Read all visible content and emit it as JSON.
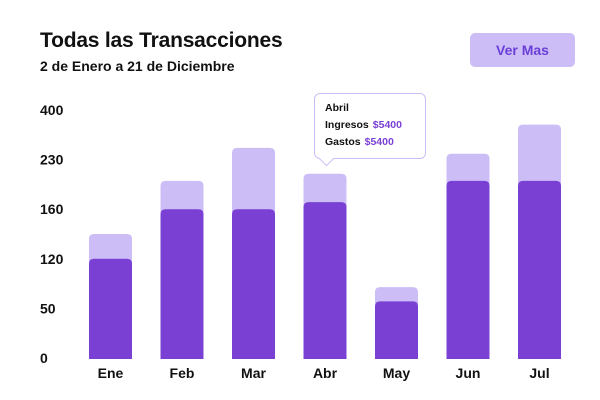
{
  "header": {
    "title": "Todas las Transacciones",
    "subtitle": "2 de Enero a 21 de Diciembre",
    "button_label": "Ver Mas"
  },
  "colors": {
    "bar_top": "#cdbdf7",
    "bar_bottom": "#7a40d4",
    "accent_text": "#6a3fd6"
  },
  "tooltip": {
    "month": "Abril",
    "ingresos_label": "Ingresos",
    "ingresos_value": "$5400",
    "gastos_label": "Gastos",
    "gastos_value": "$5400"
  },
  "chart_data": {
    "type": "bar",
    "stacked": true,
    "categories": [
      "Ene",
      "Feb",
      "Mar",
      "Abr",
      "May",
      "Jun",
      "Jul"
    ],
    "y_tick_labels": [
      "0",
      "50",
      "120",
      "160",
      "230",
      "400"
    ],
    "series": [
      {
        "values": [
          120,
          160,
          160,
          170,
          60,
          200,
          200
        ]
      },
      {
        "values": [
          20,
          40,
          110,
          40,
          20,
          50,
          150
        ]
      }
    ],
    "grid": false,
    "legend": "none"
  }
}
